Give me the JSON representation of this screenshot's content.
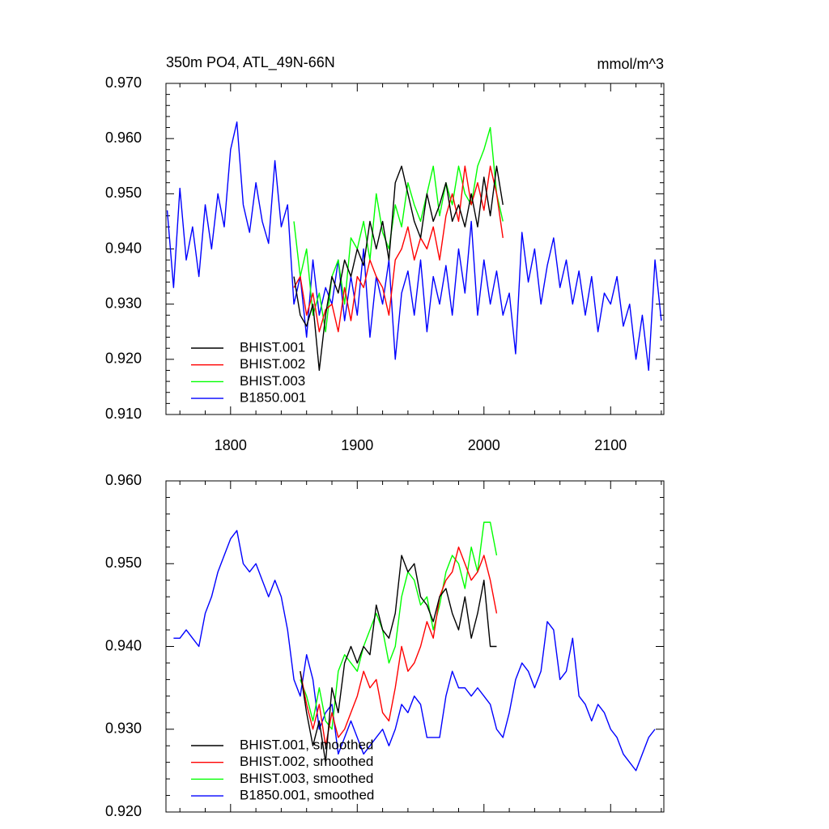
{
  "chart_data": [
    {
      "type": "line",
      "title": "350m PO4, ATL_49N-66N",
      "units": "mmol/m^3",
      "xlim": [
        1749,
        2142
      ],
      "xticks": [
        1800,
        1900,
        2000,
        2100
      ],
      "show_xtick_labels": true,
      "xminorticks": [
        1760,
        1780,
        1820,
        1840,
        1860,
        1880,
        1920,
        1940,
        1960,
        1980,
        2020,
        2040,
        2060,
        2080,
        2120,
        2140
      ],
      "ylim": [
        0.91,
        0.97
      ],
      "yticks": [
        {
          "value": 0.91,
          "label": "0.910"
        },
        {
          "value": 0.92,
          "label": "0.920"
        },
        {
          "value": 0.93,
          "label": "0.930"
        },
        {
          "value": 0.94,
          "label": "0.940"
        },
        {
          "value": 0.95,
          "label": "0.950"
        },
        {
          "value": 0.96,
          "label": "0.960"
        },
        {
          "value": 0.97,
          "label": "0.970"
        }
      ],
      "yminorticks": [
        0.912,
        0.914,
        0.916,
        0.918,
        0.922,
        0.924,
        0.926,
        0.928,
        0.932,
        0.934,
        0.936,
        0.938,
        0.942,
        0.944,
        0.946,
        0.948,
        0.952,
        0.954,
        0.956,
        0.958,
        0.962,
        0.964,
        0.966,
        0.968
      ],
      "legend": "lower left",
      "series": [
        {
          "name": "BHIST.001",
          "color": "#000000",
          "x": [
            1850,
            1855,
            1860,
            1865,
            1870,
            1875,
            1880,
            1885,
            1890,
            1895,
            1900,
            1905,
            1910,
            1915,
            1920,
            1925,
            1930,
            1935,
            1940,
            1945,
            1950,
            1955,
            1960,
            1965,
            1970,
            1975,
            1980,
            1985,
            1990,
            1995,
            2000,
            2005,
            2010,
            2015
          ],
          "values": [
            0.935,
            0.928,
            0.926,
            0.93,
            0.918,
            0.928,
            0.935,
            0.932,
            0.938,
            0.935,
            0.94,
            0.937,
            0.945,
            0.94,
            0.945,
            0.938,
            0.952,
            0.955,
            0.95,
            0.945,
            0.942,
            0.95,
            0.945,
            0.948,
            0.952,
            0.945,
            0.948,
            0.944,
            0.95,
            0.944,
            0.953,
            0.946,
            0.955,
            0.948
          ]
        },
        {
          "name": "BHIST.002",
          "color": "#ff0000",
          "x": [
            1850,
            1855,
            1860,
            1865,
            1870,
            1875,
            1880,
            1885,
            1890,
            1895,
            1900,
            1905,
            1910,
            1915,
            1920,
            1925,
            1930,
            1935,
            1940,
            1945,
            1950,
            1955,
            1960,
            1965,
            1970,
            1975,
            1980,
            1985,
            1990,
            1995,
            2000,
            2005,
            2010,
            2015
          ],
          "values": [
            0.933,
            0.935,
            0.928,
            0.932,
            0.925,
            0.929,
            0.93,
            0.925,
            0.933,
            0.927,
            0.935,
            0.933,
            0.938,
            0.935,
            0.933,
            0.928,
            0.938,
            0.94,
            0.944,
            0.938,
            0.942,
            0.94,
            0.944,
            0.938,
            0.946,
            0.95,
            0.945,
            0.955,
            0.948,
            0.952,
            0.947,
            0.955,
            0.95,
            0.942
          ]
        },
        {
          "name": "BHIST.003",
          "color": "#00ff00",
          "x": [
            1850,
            1855,
            1860,
            1865,
            1870,
            1875,
            1880,
            1885,
            1890,
            1895,
            1900,
            1905,
            1910,
            1915,
            1920,
            1925,
            1930,
            1935,
            1940,
            1945,
            1950,
            1955,
            1960,
            1965,
            1970,
            1975,
            1980,
            1985,
            1990,
            1995,
            2000,
            2005,
            2010,
            2015
          ],
          "values": [
            0.945,
            0.935,
            0.94,
            0.928,
            0.932,
            0.925,
            0.935,
            0.938,
            0.93,
            0.942,
            0.94,
            0.945,
            0.938,
            0.95,
            0.943,
            0.94,
            0.948,
            0.944,
            0.952,
            0.948,
            0.945,
            0.95,
            0.955,
            0.946,
            0.952,
            0.948,
            0.955,
            0.95,
            0.948,
            0.955,
            0.958,
            0.962,
            0.95,
            0.945
          ]
        },
        {
          "name": "B1850.001",
          "color": "#0000ff",
          "x": [
            1750,
            1755,
            1760,
            1765,
            1770,
            1775,
            1780,
            1785,
            1790,
            1795,
            1800,
            1805,
            1810,
            1815,
            1820,
            1825,
            1830,
            1835,
            1840,
            1845,
            1850,
            1855,
            1860,
            1865,
            1870,
            1875,
            1880,
            1885,
            1890,
            1895,
            1900,
            1905,
            1910,
            1915,
            1920,
            1925,
            1930,
            1935,
            1940,
            1945,
            1950,
            1955,
            1960,
            1965,
            1970,
            1975,
            1980,
            1985,
            1990,
            1995,
            2000,
            2005,
            2010,
            2015,
            2020,
            2025,
            2030,
            2035,
            2040,
            2045,
            2050,
            2055,
            2060,
            2065,
            2070,
            2075,
            2080,
            2085,
            2090,
            2095,
            2100,
            2105,
            2110,
            2115,
            2120,
            2125,
            2130,
            2135,
            2140
          ],
          "values": [
            0.947,
            0.933,
            0.951,
            0.938,
            0.944,
            0.935,
            0.948,
            0.94,
            0.95,
            0.944,
            0.958,
            0.963,
            0.948,
            0.943,
            0.952,
            0.945,
            0.941,
            0.956,
            0.944,
            0.948,
            0.93,
            0.935,
            0.924,
            0.938,
            0.928,
            0.933,
            0.93,
            0.938,
            0.927,
            0.935,
            0.928,
            0.94,
            0.924,
            0.935,
            0.93,
            0.938,
            0.92,
            0.932,
            0.936,
            0.928,
            0.938,
            0.925,
            0.935,
            0.93,
            0.937,
            0.928,
            0.94,
            0.932,
            0.945,
            0.928,
            0.938,
            0.93,
            0.936,
            0.928,
            0.932,
            0.921,
            0.943,
            0.934,
            0.94,
            0.93,
            0.937,
            0.942,
            0.933,
            0.938,
            0.93,
            0.936,
            0.928,
            0.935,
            0.925,
            0.932,
            0.93,
            0.935,
            0.926,
            0.93,
            0.92,
            0.928,
            0.918,
            0.938,
            0.927
          ]
        }
      ]
    },
    {
      "type": "line",
      "xlim": [
        1749,
        2142
      ],
      "xticks": [
        1800,
        1900,
        2000,
        2100
      ],
      "show_xtick_labels": false,
      "xminorticks": [
        1760,
        1780,
        1820,
        1840,
        1860,
        1880,
        1920,
        1940,
        1960,
        1980,
        2020,
        2040,
        2060,
        2080,
        2120,
        2140
      ],
      "ylim": [
        0.92,
        0.96
      ],
      "yticks": [
        {
          "value": 0.92,
          "label": "0.920"
        },
        {
          "value": 0.93,
          "label": "0.930"
        },
        {
          "value": 0.94,
          "label": "0.940"
        },
        {
          "value": 0.95,
          "label": "0.950"
        },
        {
          "value": 0.96,
          "label": "0.960"
        }
      ],
      "yminorticks": [
        0.922,
        0.924,
        0.926,
        0.928,
        0.932,
        0.934,
        0.936,
        0.938,
        0.942,
        0.944,
        0.946,
        0.948,
        0.952,
        0.954,
        0.956,
        0.958
      ],
      "legend": "lower left",
      "series": [
        {
          "name": "BHIST.001, smoothed",
          "color": "#000000",
          "x": [
            1855,
            1860,
            1865,
            1870,
            1875,
            1880,
            1885,
            1890,
            1895,
            1900,
            1905,
            1910,
            1915,
            1920,
            1925,
            1930,
            1935,
            1940,
            1945,
            1950,
            1955,
            1960,
            1965,
            1970,
            1975,
            1980,
            1985,
            1990,
            1995,
            2000,
            2005,
            2010
          ],
          "values": [
            0.937,
            0.932,
            0.928,
            0.931,
            0.926,
            0.935,
            0.932,
            0.938,
            0.94,
            0.938,
            0.94,
            0.939,
            0.945,
            0.942,
            0.941,
            0.944,
            0.951,
            0.949,
            0.95,
            0.946,
            0.945,
            0.943,
            0.946,
            0.947,
            0.944,
            0.942,
            0.946,
            0.941,
            0.944,
            0.948,
            0.94,
            0.94
          ]
        },
        {
          "name": "BHIST.002, smoothed",
          "color": "#ff0000",
          "x": [
            1855,
            1860,
            1865,
            1870,
            1875,
            1880,
            1885,
            1890,
            1895,
            1900,
            1905,
            1910,
            1915,
            1920,
            1925,
            1930,
            1935,
            1940,
            1945,
            1950,
            1955,
            1960,
            1965,
            1970,
            1975,
            1980,
            1985,
            1990,
            1995,
            2000,
            2005,
            2010
          ],
          "values": [
            0.937,
            0.933,
            0.93,
            0.933,
            0.928,
            0.932,
            0.929,
            0.93,
            0.932,
            0.934,
            0.937,
            0.935,
            0.936,
            0.932,
            0.931,
            0.935,
            0.94,
            0.937,
            0.938,
            0.94,
            0.943,
            0.941,
            0.946,
            0.948,
            0.949,
            0.952,
            0.95,
            0.948,
            0.949,
            0.951,
            0.948,
            0.944
          ]
        },
        {
          "name": "BHIST.003, smoothed",
          "color": "#00ff00",
          "x": [
            1855,
            1860,
            1865,
            1870,
            1875,
            1880,
            1885,
            1890,
            1895,
            1900,
            1905,
            1910,
            1915,
            1920,
            1925,
            1930,
            1935,
            1940,
            1945,
            1950,
            1955,
            1960,
            1965,
            1970,
            1975,
            1980,
            1985,
            1990,
            1995,
            2000,
            2005,
            2010
          ],
          "values": [
            0.936,
            0.934,
            0.931,
            0.935,
            0.931,
            0.93,
            0.937,
            0.939,
            0.938,
            0.937,
            0.94,
            0.942,
            0.944,
            0.942,
            0.938,
            0.94,
            0.946,
            0.949,
            0.948,
            0.945,
            0.946,
            0.942,
            0.945,
            0.949,
            0.951,
            0.95,
            0.947,
            0.952,
            0.949,
            0.955,
            0.955,
            0.951
          ]
        },
        {
          "name": "B1850.001, smoothed",
          "color": "#0000ff",
          "x": [
            1755,
            1760,
            1765,
            1770,
            1775,
            1780,
            1785,
            1790,
            1795,
            1800,
            1805,
            1810,
            1815,
            1820,
            1825,
            1830,
            1835,
            1840,
            1845,
            1850,
            1855,
            1860,
            1865,
            1870,
            1875,
            1880,
            1885,
            1890,
            1895,
            1900,
            1905,
            1910,
            1915,
            1920,
            1925,
            1930,
            1935,
            1940,
            1945,
            1950,
            1955,
            1960,
            1965,
            1970,
            1975,
            1980,
            1985,
            1990,
            1995,
            2000,
            2005,
            2010,
            2015,
            2020,
            2025,
            2030,
            2035,
            2040,
            2045,
            2050,
            2055,
            2060,
            2065,
            2070,
            2075,
            2080,
            2085,
            2090,
            2095,
            2100,
            2105,
            2110,
            2115,
            2120,
            2125,
            2130,
            2135
          ],
          "values": [
            0.941,
            0.941,
            0.942,
            0.941,
            0.94,
            0.944,
            0.946,
            0.949,
            0.951,
            0.953,
            0.954,
            0.95,
            0.949,
            0.95,
            0.948,
            0.946,
            0.948,
            0.946,
            0.942,
            0.936,
            0.934,
            0.939,
            0.936,
            0.93,
            0.932,
            0.933,
            0.927,
            0.929,
            0.931,
            0.929,
            0.927,
            0.928,
            0.929,
            0.93,
            0.928,
            0.93,
            0.933,
            0.932,
            0.934,
            0.933,
            0.929,
            0.929,
            0.929,
            0.934,
            0.937,
            0.935,
            0.935,
            0.934,
            0.935,
            0.934,
            0.933,
            0.93,
            0.929,
            0.932,
            0.936,
            0.938,
            0.937,
            0.935,
            0.937,
            0.943,
            0.942,
            0.936,
            0.937,
            0.941,
            0.934,
            0.933,
            0.931,
            0.933,
            0.932,
            0.93,
            0.929,
            0.927,
            0.926,
            0.925,
            0.927,
            0.929,
            0.93
          ]
        }
      ]
    }
  ]
}
